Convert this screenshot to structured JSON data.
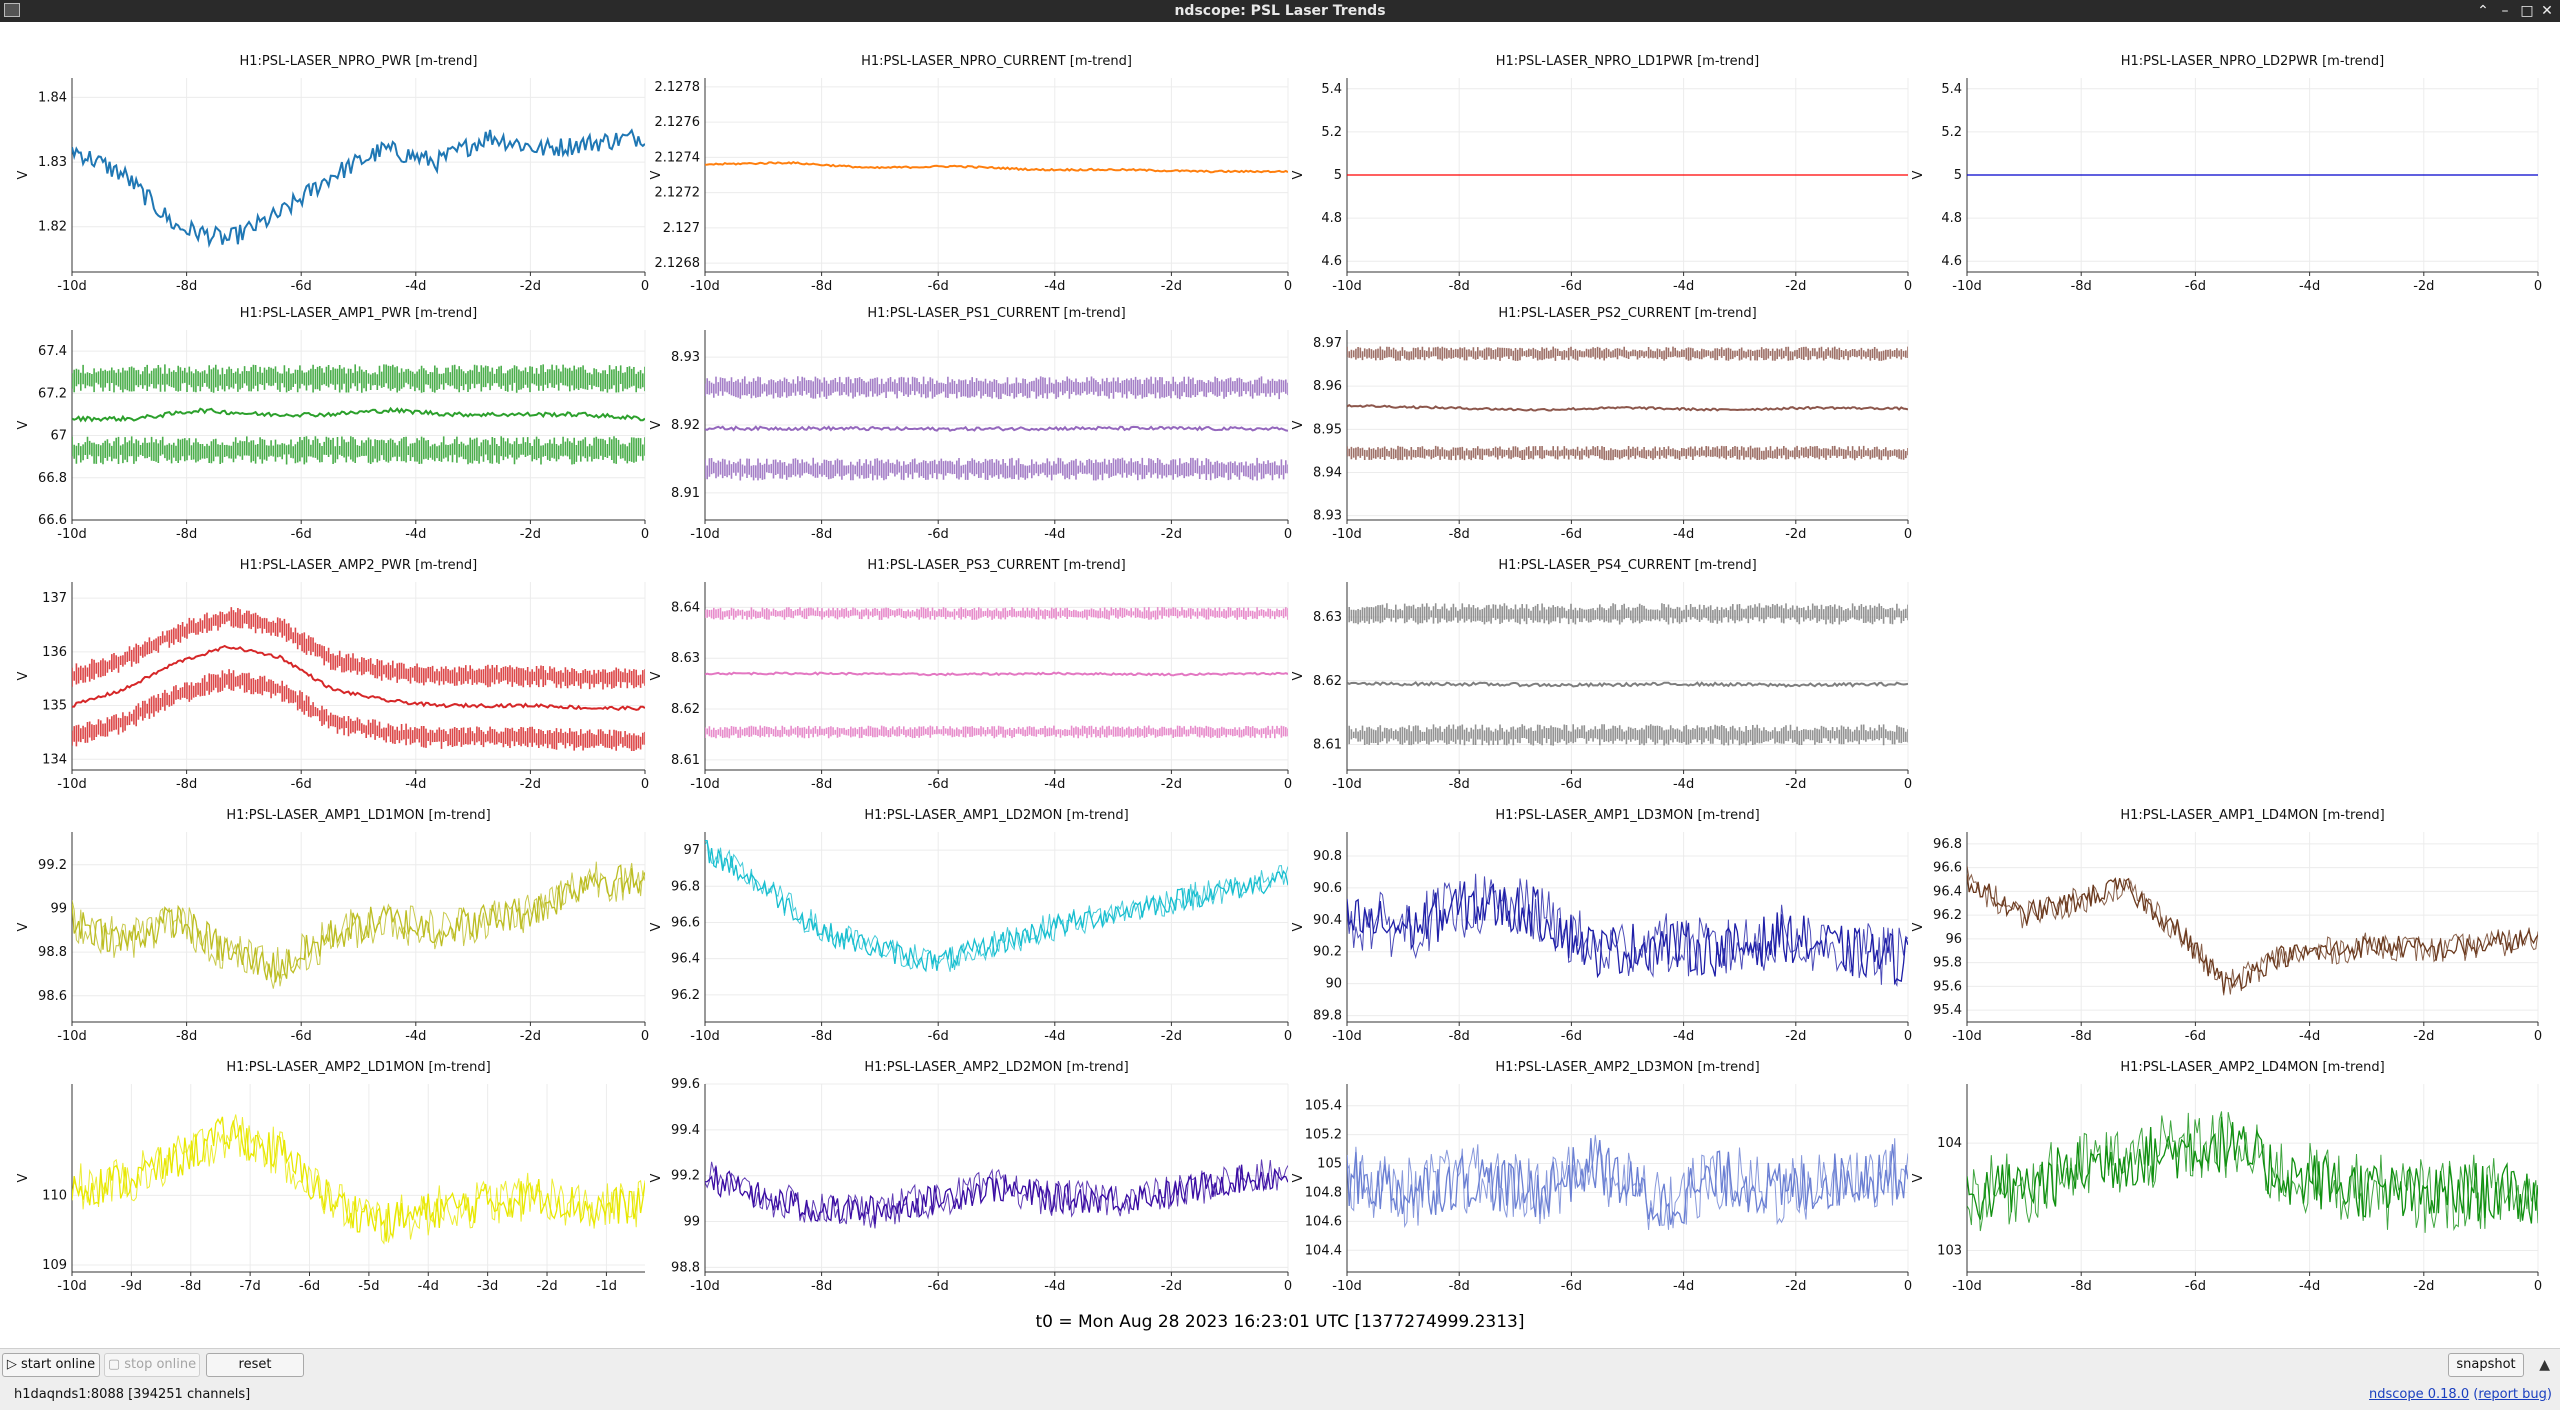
{
  "window": {
    "title": "ndscope: PSL Laser Trends"
  },
  "ylabel": "V",
  "t0": "t0 = Mon Aug 28 2023 16:23:01 UTC [1377274999.2313]",
  "buttons": {
    "start": "start online",
    "stop": "stop online",
    "reset": "reset",
    "snapshot": "snapshot"
  },
  "status": "h1daqnds1:8088  [394251 channels]",
  "version": {
    "name": "ndscope 0.18.0",
    "report": "report bug"
  },
  "chart_data": [
    {
      "title": "H1:PSL-LASER_NPRO_PWR [m-trend]",
      "type": "line",
      "color": "#1f77b4",
      "ylim": [
        1.813,
        1.843
      ],
      "yticks": [
        1.82,
        1.83,
        1.84
      ],
      "xticklabels": [
        "-10d",
        "-8d",
        "-6d",
        "-4d",
        "-2d",
        "0"
      ],
      "bands": [
        1.827
      ],
      "noise": 0.012,
      "trend": [
        1.832,
        1.828,
        1.82,
        1.818,
        1.822,
        1.828,
        1.832,
        1.83,
        1.834,
        1.832,
        1.833,
        1.834
      ]
    },
    {
      "title": "H1:PSL-LASER_NPRO_CURRENT [m-trend]",
      "type": "line",
      "color": "#ff7f0e",
      "ylim": [
        2.12675,
        2.12785
      ],
      "yticks": [
        2.1268,
        2.127,
        2.1272,
        2.1274,
        2.1276,
        2.1278
      ],
      "xticklabels": [
        "-10d",
        "-8d",
        "-6d",
        "-4d",
        "-2d",
        "0"
      ],
      "bands": [
        2.12754,
        2.12738,
        2.12715,
        2.12695
      ],
      "noise": 4e-05,
      "trend": [
        2.12736,
        2.12737,
        2.12734,
        2.12735,
        2.12733,
        2.12733,
        2.12732,
        2.12732
      ]
    },
    {
      "title": "H1:PSL-LASER_NPRO_LD1PWR [m-trend]",
      "type": "line",
      "color": "#ff0000",
      "ylim": [
        4.55,
        5.45
      ],
      "yticks": [
        4.6,
        4.8,
        5,
        5.2,
        5.4
      ],
      "xticklabels": [
        "-10d",
        "-8d",
        "-6d",
        "-4d",
        "-2d",
        "0"
      ],
      "bands": [],
      "noise": 0,
      "trend": [
        5,
        5
      ]
    },
    {
      "title": "H1:PSL-LASER_NPRO_LD2PWR [m-trend]",
      "type": "line",
      "color": "#0000cc",
      "ylim": [
        4.55,
        5.45
      ],
      "yticks": [
        4.6,
        4.8,
        5,
        5.2,
        5.4
      ],
      "xticklabels": [
        "-10d",
        "-8d",
        "-6d",
        "-4d",
        "-2d",
        "0"
      ],
      "bands": [],
      "noise": 0,
      "trend": [
        5,
        5
      ]
    },
    {
      "title": "H1:PSL-LASER_AMP1_PWR [m-trend]",
      "type": "line",
      "color": "#2ca02c",
      "ylim": [
        66.6,
        67.5
      ],
      "yticks": [
        66.6,
        66.8,
        67,
        67.2,
        67.4
      ],
      "xticklabels": [
        "-10d",
        "-8d",
        "-6d",
        "-4d",
        "-2d",
        "0"
      ],
      "bands": [
        67.27,
        66.93
      ],
      "noise": 0.08,
      "trend": [
        67.08,
        67.08,
        67.12,
        67.1,
        67.1,
        67.12,
        67.1,
        67.1,
        67.1,
        67.08
      ]
    },
    {
      "title": "H1:PSL-LASER_PS1_CURRENT [m-trend]",
      "type": "line",
      "color": "#9467bd",
      "ylim": [
        8.906,
        8.934
      ],
      "yticks": [
        8.91,
        8.92,
        8.93
      ],
      "xticklabels": [
        "-10d",
        "-8d",
        "-6d",
        "-4d",
        "-2d",
        "0"
      ],
      "bands": [
        8.9255,
        8.9135
      ],
      "noise": 0.002,
      "trend": [
        8.9195,
        8.9195,
        8.9194,
        8.9195,
        8.9195,
        8.9194
      ]
    },
    {
      "title": "H1:PSL-LASER_PS2_CURRENT [m-trend]",
      "type": "line",
      "color": "#8c564b",
      "ylim": [
        8.929,
        8.973
      ],
      "yticks": [
        8.93,
        8.94,
        8.95,
        8.96,
        8.97
      ],
      "xticklabels": [
        "-10d",
        "-8d",
        "-6d",
        "-4d",
        "-2d",
        "0"
      ],
      "bands": [
        8.9445,
        8.9675
      ],
      "noise": 0.002,
      "trend": [
        8.9555,
        8.955,
        8.9545,
        8.955,
        8.9545,
        8.955,
        8.9548
      ]
    },
    null,
    {
      "title": "H1:PSL-LASER_AMP2_PWR [m-trend]",
      "type": "line",
      "color": "#d62728",
      "ylim": [
        133.8,
        137.3
      ],
      "yticks": [
        134,
        135,
        136,
        137
      ],
      "xticklabels": [
        "-10d",
        "-8d",
        "-6d",
        "-4d",
        "-2d",
        "0"
      ],
      "bands": [
        0.55,
        -0.6
      ],
      "noise": 0.25,
      "trend": [
        135,
        135.3,
        135.8,
        136.1,
        135.9,
        135.3,
        135.1,
        135,
        135,
        135,
        134.95,
        134.95
      ]
    },
    {
      "title": "H1:PSL-LASER_PS3_CURRENT [m-trend]",
      "type": "line",
      "color": "#e377c2",
      "ylim": [
        8.608,
        8.645
      ],
      "yticks": [
        8.61,
        8.62,
        8.63,
        8.64
      ],
      "xticklabels": [
        "-10d",
        "-8d",
        "-6d",
        "-4d",
        "-2d",
        "0"
      ],
      "bands": [
        8.6388,
        8.6155
      ],
      "noise": 0.0015,
      "trend": [
        8.627,
        8.627,
        8.6268,
        8.627,
        8.6268,
        8.627
      ]
    },
    {
      "title": "H1:PSL-LASER_PS4_CURRENT [m-trend]",
      "type": "line",
      "color": "#7f7f7f",
      "ylim": [
        8.606,
        8.6355
      ],
      "yticks": [
        8.61,
        8.62,
        8.63
      ],
      "xticklabels": [
        "-10d",
        "-8d",
        "-6d",
        "-4d",
        "-2d",
        "0"
      ],
      "bands": [
        8.6305,
        8.6115
      ],
      "noise": 0.002,
      "trend": [
        8.6195,
        8.6195,
        8.6193,
        8.6195,
        8.6193,
        8.6195
      ]
    },
    null,
    {
      "title": "H1:PSL-LASER_AMP1_LD1MON [m-trend]",
      "type": "line",
      "color": "#bcbd22",
      "ylim": [
        98.48,
        99.35
      ],
      "yticks": [
        98.6,
        98.8,
        99,
        99.2
      ],
      "xticklabels": [
        "-10d",
        "-8d",
        "-6d",
        "-4d",
        "-2d",
        "0"
      ],
      "bands": [],
      "noise": 0.1,
      "trend": [
        98.95,
        98.85,
        98.95,
        98.8,
        98.72,
        98.88,
        98.95,
        98.9,
        98.95,
        99.0,
        99.15,
        99.1
      ]
    },
    {
      "title": "H1:PSL-LASER_AMP1_LD2MON [m-trend]",
      "type": "line",
      "color": "#17becf",
      "ylim": [
        96.05,
        97.1
      ],
      "yticks": [
        96.2,
        96.4,
        96.6,
        96.8,
        97
      ],
      "xticklabels": [
        "-10d",
        "-8d",
        "-6d",
        "-4d",
        "-2d",
        "0"
      ],
      "bands": [],
      "noise": 0.08,
      "trend": [
        97.0,
        96.8,
        96.55,
        96.45,
        96.38,
        96.48,
        96.58,
        96.65,
        96.72,
        96.78,
        96.85
      ]
    },
    {
      "title": "H1:PSL-LASER_AMP1_LD3MON [m-trend]",
      "type": "line",
      "color": "#1f1fa8",
      "ylim": [
        89.76,
        90.95
      ],
      "yticks": [
        89.8,
        90,
        90.2,
        90.4,
        90.6,
        90.8
      ],
      "xticklabels": [
        "-10d",
        "-8d",
        "-6d",
        "-4d",
        "-2d",
        "0"
      ],
      "bands": [],
      "noise": 0.2,
      "trend": [
        90.4,
        90.35,
        90.5,
        90.45,
        90.2,
        90.25,
        90.2,
        90.3,
        90.2,
        90.15
      ]
    },
    {
      "title": "H1:PSL-LASER_AMP1_LD4MON [m-trend]",
      "type": "line",
      "color": "#6b3a1e",
      "ylim": [
        95.3,
        96.9
      ],
      "yticks": [
        95.4,
        95.6,
        95.8,
        96,
        96.2,
        96.4,
        96.6,
        96.8
      ],
      "xticklabels": [
        "-10d",
        "-8d",
        "-6d",
        "-4d",
        "-2d",
        "0"
      ],
      "bands": [],
      "noise": 0.12,
      "trend": [
        96.5,
        96.2,
        96.3,
        96.45,
        96.1,
        95.6,
        95.85,
        95.9,
        95.95,
        95.9,
        95.95,
        96.0
      ]
    },
    {
      "title": "H1:PSL-LASER_AMP2_LD1MON [m-trend]",
      "type": "line",
      "color": "#e8e800",
      "ylim": [
        108.9,
        111.6
      ],
      "yticks": [
        109,
        110
      ],
      "xticklabels": [
        "-10d",
        "-9d",
        "-8d",
        "-7d",
        "-6d",
        "-5d",
        "-4d",
        "-3d",
        "-2d",
        "-1d"
      ],
      "bands": [],
      "noise": 0.35,
      "trend": [
        110.1,
        110.2,
        110.5,
        110.9,
        110.6,
        109.9,
        109.6,
        109.8,
        109.9,
        110.0,
        109.8,
        109.9
      ]
    },
    {
      "title": "H1:PSL-LASER_AMP2_LD2MON [m-trend]",
      "type": "line",
      "color": "#3a0ca3",
      "ylim": [
        98.78,
        99.6
      ],
      "yticks": [
        98.8,
        99,
        99.2,
        99.4,
        99.6
      ],
      "xticklabels": [
        "-10d",
        "-8d",
        "-6d",
        "-4d",
        "-2d",
        "0"
      ],
      "bands": [],
      "noise": 0.08,
      "trend": [
        99.2,
        99.1,
        99.05,
        99.05,
        99.1,
        99.15,
        99.1,
        99.1,
        99.12,
        99.18,
        99.2
      ]
    },
    {
      "title": "H1:PSL-LASER_AMP2_LD3MON [m-trend]",
      "type": "line",
      "color": "#6a7fd3",
      "ylim": [
        104.25,
        105.55
      ],
      "yticks": [
        104.4,
        104.6,
        104.8,
        105,
        105.2,
        105.4
      ],
      "xticklabels": [
        "-10d",
        "-8d",
        "-6d",
        "-4d",
        "-2d",
        "0"
      ],
      "bands": [],
      "noise": 0.25,
      "trend": [
        104.9,
        104.8,
        104.9,
        104.8,
        105.0,
        104.7,
        104.9,
        104.8,
        104.9,
        104.95
      ]
    },
    {
      "title": "H1:PSL-LASER_AMP2_LD4MON [m-trend]",
      "type": "line",
      "color": "#109010",
      "ylim": [
        102.8,
        104.55
      ],
      "yticks": [
        103,
        104
      ],
      "xticklabels": [
        "-10d",
        "-8d",
        "-6d",
        "-4d",
        "-2d",
        "0"
      ],
      "bands": [],
      "noise": 0.35,
      "trend": [
        103.5,
        103.6,
        103.8,
        103.9,
        104.0,
        103.7,
        103.6,
        103.5,
        103.55,
        103.5
      ]
    }
  ]
}
